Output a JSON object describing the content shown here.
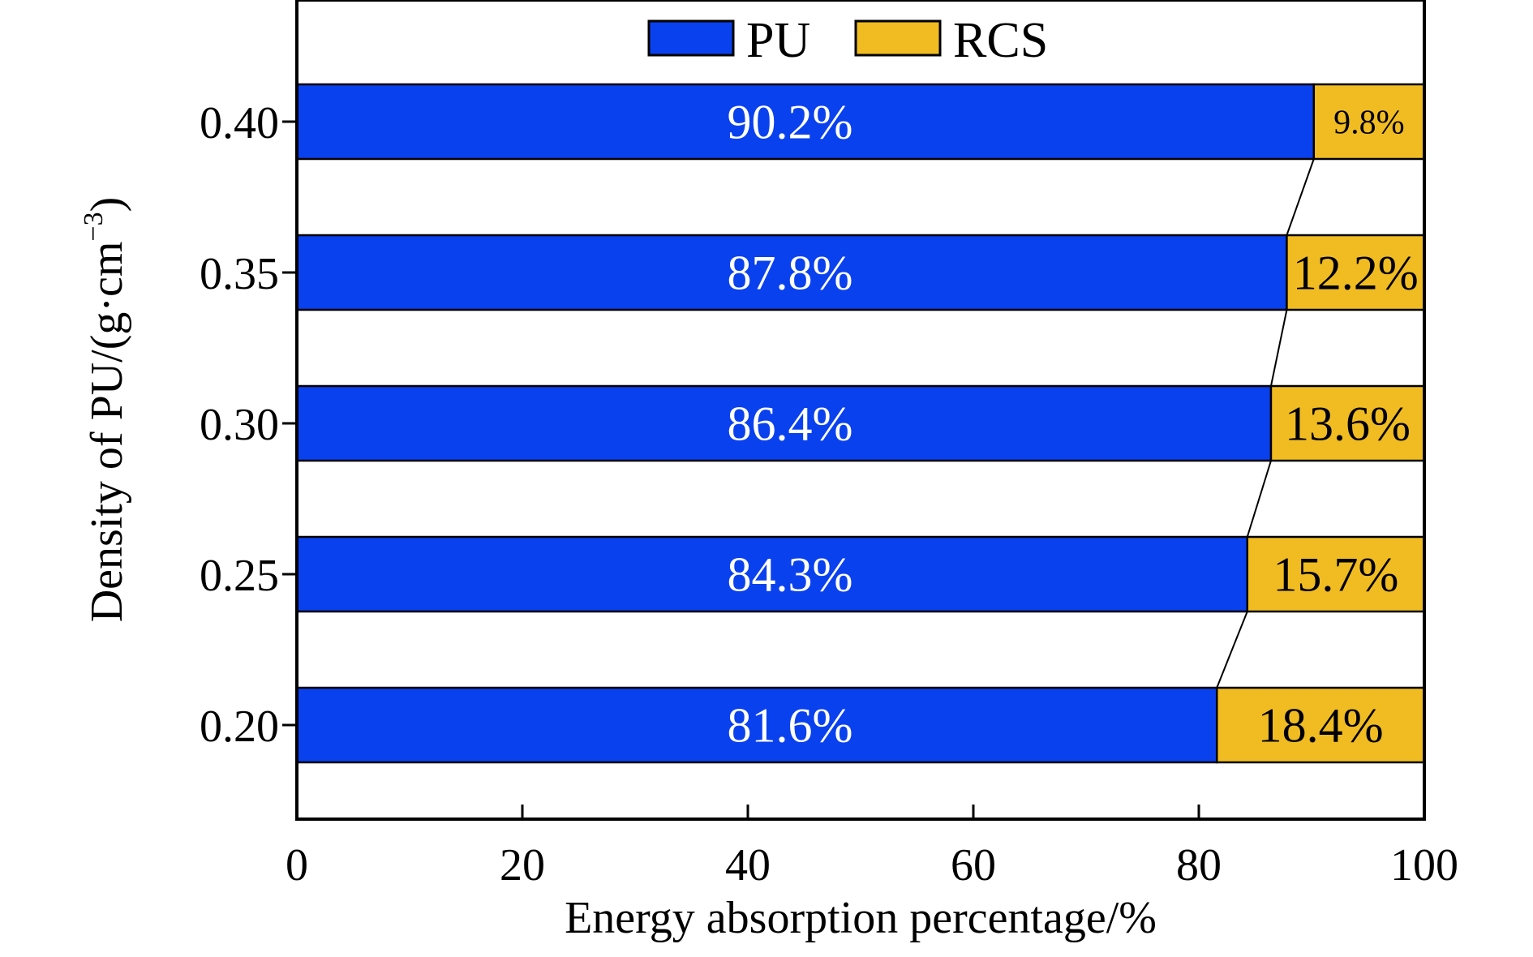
{
  "chart_data": {
    "type": "bar",
    "orientation": "horizontal",
    "stacked": true,
    "title": "",
    "xlabel": "Energy absorption percentage/%",
    "ylabel": "Density of PU/(g·cm−3)",
    "ylabel_parts": {
      "base": "Density of PU/(g·cm",
      "sup": "−3",
      "close": ")"
    },
    "xlim": [
      0,
      100
    ],
    "xticks": [
      "0",
      "20",
      "40",
      "60",
      "80",
      "100"
    ],
    "categories": [
      "0.40",
      "0.35",
      "0.30",
      "0.25",
      "0.20"
    ],
    "series": [
      {
        "name": "PU",
        "color": "#0a41ee",
        "values": [
          90.2,
          87.8,
          86.4,
          84.3,
          81.6
        ],
        "labels": [
          "90.2%",
          "87.8%",
          "86.4%",
          "84.3%",
          "81.6%"
        ],
        "label_color": "#ffffff"
      },
      {
        "name": "RCS",
        "color": "#f0bc22",
        "values": [
          9.8,
          12.2,
          13.6,
          15.7,
          18.4
        ],
        "labels": [
          "9.8%",
          "12.2%",
          "13.6%",
          "15.7%",
          "18.4%"
        ],
        "label_color": "#000000"
      }
    ],
    "connector_lines": true,
    "legend": {
      "position": "top-center",
      "entries": [
        "PU",
        "RCS"
      ]
    },
    "grid": false
  }
}
